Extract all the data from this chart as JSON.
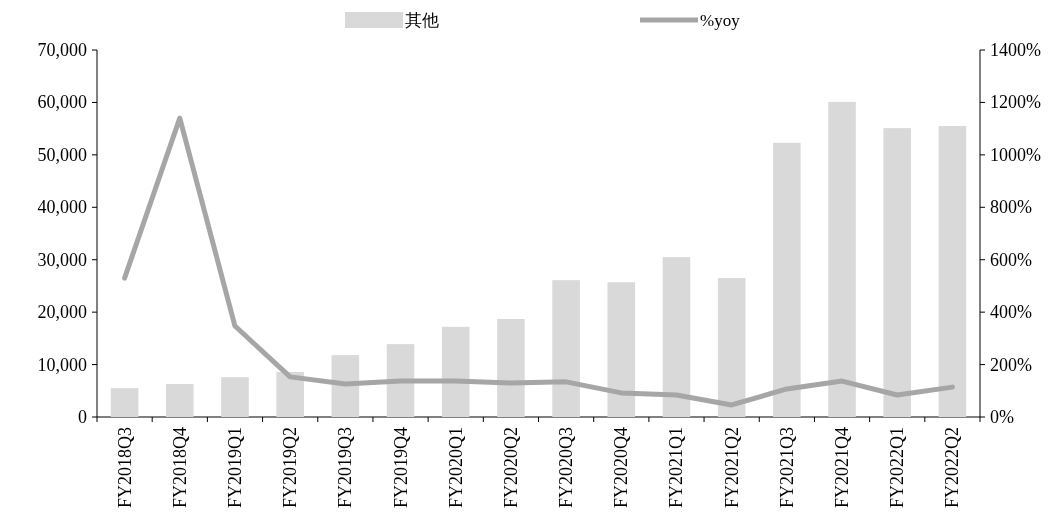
{
  "chart_data": {
    "type": "bar",
    "categories": [
      "FY2018Q3",
      "FY2018Q4",
      "FY2019Q1",
      "FY2019Q2",
      "FY2019Q3",
      "FY2019Q4",
      "FY2020Q1",
      "FY2020Q2",
      "FY2020Q3",
      "FY2020Q4",
      "FY2021Q1",
      "FY2021Q2",
      "FY2021Q3",
      "FY2021Q4",
      "FY2022Q1",
      "FY2022Q2"
    ],
    "series": [
      {
        "name": "其他",
        "color": "#d9d9d9",
        "values": [
          5500,
          6300,
          7600,
          8600,
          11800,
          13900,
          17200,
          18700,
          26100,
          25700,
          30500,
          26500,
          52300,
          60100,
          55100,
          55500
        ]
      },
      {
        "name": "%yoy",
        "type": "line",
        "axis": "y2",
        "color": "#a6a6a6",
        "values": [
          530,
          1140,
          347,
          153,
          126,
          137,
          137,
          130,
          134,
          92,
          84,
          46,
          107,
          137,
          84,
          114
        ]
      }
    ],
    "ylim": [
      0,
      70000
    ],
    "yticks": [
      0,
      {
        "value": 10000,
        "label": "10,000"
      },
      {
        "value": 20000,
        "label": "20,000"
      },
      {
        "value": 30000,
        "label": "30,000"
      },
      {
        "value": 40000,
        "label": "40,000"
      },
      {
        "value": 50000,
        "label": "50,000"
      },
      {
        "value": 60000,
        "label": "60,000"
      },
      {
        "value": 70000,
        "label": "70,000"
      }
    ],
    "y2lim": [
      0,
      1400
    ],
    "y2ticks": [
      {
        "value": 0,
        "label": "0%"
      },
      {
        "value": 200,
        "label": "200%"
      },
      {
        "value": 400,
        "label": "400%"
      },
      {
        "value": 600,
        "label": "600%"
      },
      {
        "value": 800,
        "label": "800%"
      },
      {
        "value": 1000,
        "label": "1000%"
      },
      {
        "value": 1200,
        "label": "1200%"
      },
      {
        "value": 1400,
        "label": "1400%"
      }
    ],
    "legend": "top",
    "grid": false,
    "marker": "none",
    "line_style": "solid"
  }
}
